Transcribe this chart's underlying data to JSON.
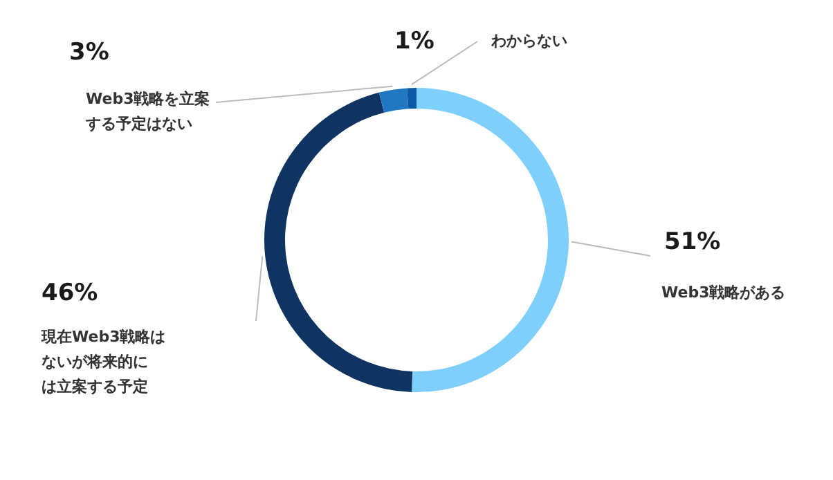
{
  "chart_data": {
    "type": "donut",
    "categories": [
      "Web3戦略がある",
      "現在Web3戦略はないが将来的には立案する予定",
      "Web3戦略を立案する予定はない",
      "わからない"
    ],
    "value_labels": [
      "51%",
      "46%",
      "3%",
      "1%"
    ],
    "values": [
      51,
      46,
      3,
      1
    ],
    "colors": [
      "#7fcffc",
      "#0f3461",
      "#1f78c1",
      "#0b5aa6"
    ]
  }
}
